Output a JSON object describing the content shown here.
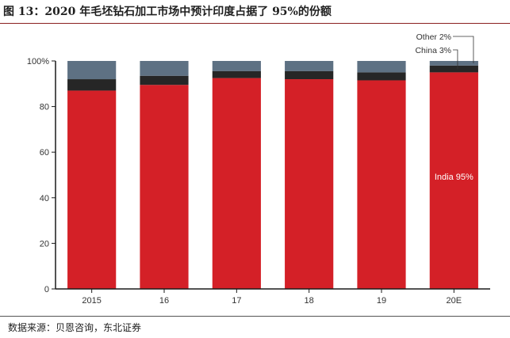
{
  "title": "图 13：2020 年毛坯钻石加工市场中预计印度占据了 95%的份额",
  "source": "数据来源：贝恩咨询，东北证券",
  "colors": {
    "india": "#d42027",
    "china": "#262626",
    "other": "#5e7183",
    "axis": "#1a1a1a",
    "label_light": "#ffffff",
    "label_dark": "#333333",
    "rule": "#8a1f1f"
  },
  "chart_data": {
    "type": "bar",
    "stacked": true,
    "categories": [
      "2015",
      "16",
      "17",
      "18",
      "19",
      "20E"
    ],
    "series": [
      {
        "key": "india",
        "values": [
          87,
          89.5,
          92.5,
          92,
          91.5,
          95
        ]
      },
      {
        "key": "china",
        "values": [
          5,
          4,
          3,
          3.5,
          3.5,
          3
        ]
      },
      {
        "key": "other",
        "values": [
          8,
          6.5,
          4.5,
          4.5,
          5,
          2
        ]
      }
    ],
    "ylim": [
      0,
      100
    ],
    "yticks": [
      0,
      20,
      40,
      60,
      80,
      100
    ],
    "ytick_labels": [
      "0",
      "20",
      "40",
      "60",
      "80",
      "100%"
    ],
    "grid": false,
    "annotations": [
      {
        "text": "Other 2%",
        "series": "other",
        "category": "20E"
      },
      {
        "text": "China 3%",
        "series": "china",
        "category": "20E"
      },
      {
        "text": "India 95%",
        "series": "india",
        "category": "20E"
      }
    ]
  }
}
